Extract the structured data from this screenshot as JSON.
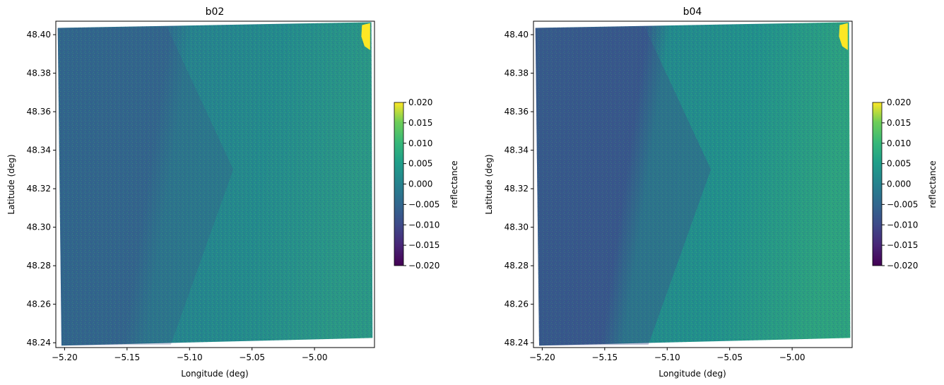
{
  "chart_data": [
    {
      "type": "heatmap",
      "title": "b02",
      "xlabel": "Longitude (deg)",
      "ylabel": "Latitude (deg)",
      "xlim": [
        -5.207,
        -4.952
      ],
      "ylim": [
        48.2375,
        48.407
      ],
      "xticks": [
        -5.2,
        -5.15,
        -5.1,
        -5.05,
        -5.0
      ],
      "xtick_labels": [
        "−5.20",
        "−5.15",
        "−5.10",
        "−5.05",
        "−5.00"
      ],
      "yticks": [
        48.24,
        48.26,
        48.28,
        48.3,
        48.32,
        48.34,
        48.36,
        48.38,
        48.4
      ],
      "ytick_labels": [
        "48.24",
        "48.26",
        "48.28",
        "48.30",
        "48.32",
        "48.34",
        "48.36",
        "48.38",
        "48.40"
      ],
      "colormap": "viridis",
      "colorbar": {
        "label": "reflectance",
        "vmin": -0.02,
        "vmax": 0.02,
        "ticks": [
          -0.02,
          -0.015,
          -0.01,
          -0.005,
          0.0,
          0.005,
          0.01,
          0.015,
          0.02
        ],
        "tick_labels": [
          "−0.020",
          "−0.015",
          "−0.010",
          "−0.005",
          "0.000",
          "0.005",
          "0.010",
          "0.015",
          "0.020"
        ]
      },
      "image_quad_lonlat": [
        [
          -5.2055,
          48.4035
        ],
        [
          -4.9545,
          48.4065
        ],
        [
          -4.9535,
          48.2425
        ],
        [
          -5.2025,
          48.2385
        ]
      ],
      "typical_values": {
        "west": -0.003,
        "east": 0.004,
        "northeast_coast": 0.02
      }
    },
    {
      "type": "heatmap",
      "title": "b04",
      "xlabel": "Longitude (deg)",
      "ylabel": "Latitude (deg)",
      "xlim": [
        -5.207,
        -4.952
      ],
      "ylim": [
        48.2375,
        48.407
      ],
      "xticks": [
        -5.2,
        -5.15,
        -5.1,
        -5.05,
        -5.0
      ],
      "xtick_labels": [
        "−5.20",
        "−5.15",
        "−5.10",
        "−5.05",
        "−5.00"
      ],
      "yticks": [
        48.24,
        48.26,
        48.28,
        48.3,
        48.32,
        48.34,
        48.36,
        48.38,
        48.4
      ],
      "ytick_labels": [
        "48.24",
        "48.26",
        "48.28",
        "48.30",
        "48.32",
        "48.34",
        "48.36",
        "48.38",
        "48.40"
      ],
      "colormap": "viridis",
      "colorbar": {
        "label": "reflectance",
        "vmin": -0.02,
        "vmax": 0.02,
        "ticks": [
          -0.02,
          -0.015,
          -0.01,
          -0.005,
          0.0,
          0.005,
          0.01,
          0.015,
          0.02
        ],
        "tick_labels": [
          "−0.020",
          "−0.015",
          "−0.010",
          "−0.005",
          "0.000",
          "0.005",
          "0.010",
          "0.015",
          "0.020"
        ]
      },
      "image_quad_lonlat": [
        [
          -5.2055,
          48.4035
        ],
        [
          -4.9545,
          48.4065
        ],
        [
          -4.9535,
          48.2425
        ],
        [
          -5.2025,
          48.2385
        ]
      ],
      "typical_values": {
        "west": -0.006,
        "east": 0.005,
        "northeast_coast": 0.02
      }
    }
  ]
}
